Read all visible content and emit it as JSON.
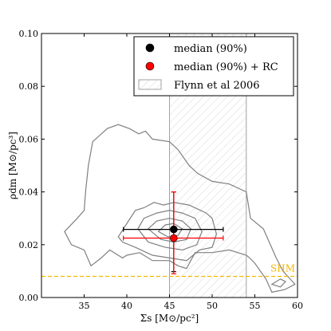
{
  "chart_data": {
    "type": "scatter",
    "xlabel": "Σs [M⊙/pc²]",
    "ylabel": "ρdm [M⊙/pc³]",
    "xlim": [
      30,
      60
    ],
    "ylim": [
      0.0,
      0.1
    ],
    "x_ticks": [
      35,
      40,
      45,
      50,
      55,
      60
    ],
    "x_tick_labels": [
      "35",
      "40",
      "45",
      "50",
      "55",
      "60"
    ],
    "y_ticks": [
      0.0,
      0.02,
      0.04,
      0.06,
      0.08,
      0.1
    ],
    "y_tick_labels": [
      "0.00",
      "0.02",
      "0.04",
      "0.06",
      "0.08",
      "0.10"
    ],
    "legend_position": "top-right",
    "legend": [
      {
        "label": "median (90%)",
        "marker": "filled-circle",
        "color": "#000000"
      },
      {
        "label": "median (90%) + RC",
        "marker": "filled-circle",
        "color": "#ff0000"
      },
      {
        "label": "Flynn et al 2006",
        "marker": "hatched-band",
        "color": "#cccccc"
      }
    ],
    "points": [
      {
        "name": "median (90%)",
        "x": 45.5,
        "y": 0.0258,
        "xerr": [
          39.6,
          51.3
        ],
        "yerr": [
          0.0098,
          0.04
        ],
        "color": "#000000",
        "errcolor": "#000000"
      },
      {
        "name": "median (90%) + RC",
        "x": 45.5,
        "y": 0.0225,
        "xerr": [
          39.6,
          51.3
        ],
        "yerr": [
          0.009,
          0.04
        ],
        "color": "#ff0000",
        "errcolor": "#ff0000"
      }
    ],
    "band": {
      "label": "Flynn et al 2006",
      "x_range": [
        45.0,
        54.0
      ]
    },
    "reference_line": {
      "label": "SHM",
      "y": 0.008,
      "color": "#f5b800"
    },
    "contour_color": "#808080",
    "contours": [
      [
        [
          32.7,
          0.025
        ],
        [
          34.2,
          0.03
        ],
        [
          35.0,
          0.033
        ],
        [
          35.2,
          0.041
        ],
        [
          35.5,
          0.05
        ],
        [
          36.0,
          0.059
        ],
        [
          37.7,
          0.064
        ],
        [
          39.0,
          0.0655
        ],
        [
          40.3,
          0.064
        ],
        [
          41.4,
          0.062
        ],
        [
          42.2,
          0.063
        ],
        [
          43.0,
          0.06
        ],
        [
          45.0,
          0.059
        ],
        [
          46.0,
          0.056
        ],
        [
          47.3,
          0.05
        ],
        [
          48.3,
          0.047
        ],
        [
          50.0,
          0.044
        ],
        [
          52.0,
          0.043
        ],
        [
          54.0,
          0.04
        ],
        [
          54.5,
          0.03
        ],
        [
          56.0,
          0.026
        ],
        [
          57.5,
          0.015
        ],
        [
          58.3,
          0.01
        ],
        [
          59.7,
          0.005
        ],
        [
          58.5,
          0.003
        ],
        [
          57.0,
          0.002
        ],
        [
          56.3,
          0.007
        ],
        [
          55.0,
          0.013
        ],
        [
          54.4,
          0.015
        ],
        [
          54.0,
          0.016
        ],
        [
          53.0,
          0.017
        ],
        [
          52.0,
          0.018
        ],
        [
          50.0,
          0.017
        ],
        [
          48.0,
          0.017
        ],
        [
          47.0,
          0.011
        ],
        [
          46.0,
          0.012
        ],
        [
          45.0,
          0.014
        ],
        [
          43.0,
          0.014
        ],
        [
          41.5,
          0.017
        ],
        [
          40.0,
          0.016
        ],
        [
          39.5,
          0.015
        ],
        [
          38.0,
          0.018
        ],
        [
          37.0,
          0.015
        ],
        [
          35.8,
          0.012
        ],
        [
          35.0,
          0.018
        ],
        [
          33.5,
          0.02
        ],
        [
          32.7,
          0.025
        ]
      ],
      [
        [
          39.0,
          0.023
        ],
        [
          40.2,
          0.029
        ],
        [
          41.0,
          0.033
        ],
        [
          42.0,
          0.034
        ],
        [
          43.2,
          0.036
        ],
        [
          44.3,
          0.035
        ],
        [
          45.5,
          0.036
        ],
        [
          47.3,
          0.035
        ],
        [
          49.3,
          0.032
        ],
        [
          50.0,
          0.03
        ],
        [
          50.5,
          0.024
        ],
        [
          50.0,
          0.019
        ],
        [
          48.5,
          0.018
        ],
        [
          47.0,
          0.014
        ],
        [
          45.0,
          0.015
        ],
        [
          43.0,
          0.016
        ],
        [
          41.0,
          0.019
        ],
        [
          39.5,
          0.021
        ],
        [
          39.0,
          0.023
        ]
      ],
      [
        [
          41.3,
          0.026
        ],
        [
          42.0,
          0.03
        ],
        [
          43.5,
          0.032
        ],
        [
          45.0,
          0.033
        ],
        [
          46.5,
          0.032
        ],
        [
          48.0,
          0.03
        ],
        [
          48.8,
          0.025
        ],
        [
          48.2,
          0.02
        ],
        [
          46.5,
          0.018
        ],
        [
          44.5,
          0.019
        ],
        [
          42.5,
          0.021
        ],
        [
          41.3,
          0.026
        ]
      ],
      [
        [
          42.5,
          0.026
        ],
        [
          43.5,
          0.029
        ],
        [
          45.0,
          0.03
        ],
        [
          46.5,
          0.029
        ],
        [
          47.5,
          0.026
        ],
        [
          47.0,
          0.022
        ],
        [
          45.5,
          0.021
        ],
        [
          44.0,
          0.022
        ],
        [
          42.5,
          0.026
        ]
      ],
      [
        [
          43.7,
          0.025
        ],
        [
          44.5,
          0.0275
        ],
        [
          45.5,
          0.028
        ],
        [
          46.5,
          0.026
        ],
        [
          46.0,
          0.0235
        ],
        [
          44.8,
          0.023
        ],
        [
          43.7,
          0.025
        ]
      ],
      [
        [
          57.0,
          0.005
        ],
        [
          58.0,
          0.007
        ],
        [
          58.6,
          0.006
        ],
        [
          58.0,
          0.004
        ],
        [
          57.0,
          0.005
        ]
      ]
    ]
  }
}
